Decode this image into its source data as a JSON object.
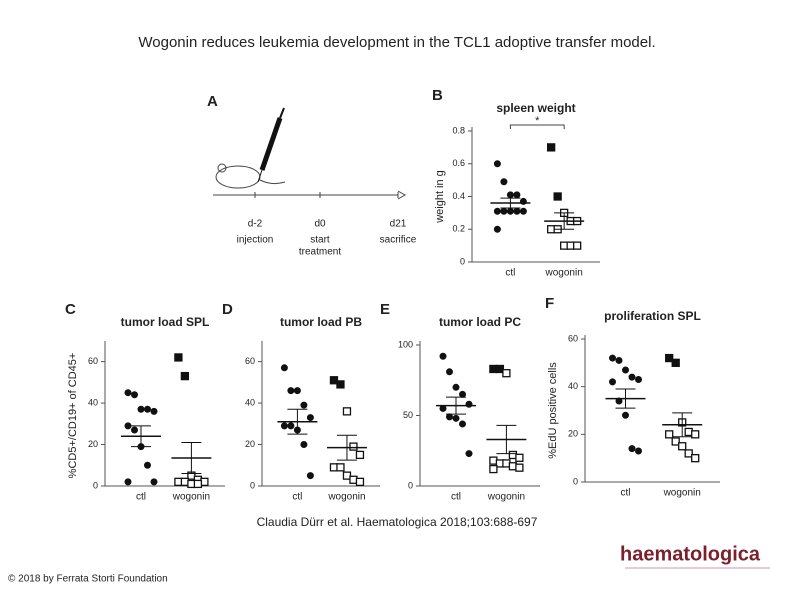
{
  "header": {
    "title": "Wogonin reduces leukemia development in the TCL1 adoptive transfer model."
  },
  "diagram": {
    "label": "A",
    "steps": [
      {
        "day": "d-2",
        "text": [
          "injection"
        ]
      },
      {
        "day": "d0",
        "text": [
          "start",
          "treatment"
        ]
      },
      {
        "day": "d21",
        "text": [
          "sacrifice"
        ]
      }
    ]
  },
  "chart_data": [
    {
      "type": "dotplot",
      "label": "B",
      "title": "spleen weight",
      "y_label": "weight in g",
      "significance": "*",
      "categories": [
        "ctl",
        "wogonin"
      ],
      "ylim": [
        0,
        0.8
      ],
      "yticks": [
        0,
        0.2,
        0.4,
        0.6,
        0.8
      ],
      "groups": [
        {
          "marker": "circle",
          "values": [
            0.6,
            0.49,
            0.41,
            0.41,
            0.37,
            0.31,
            0.31,
            0.31,
            0.31,
            0.31,
            0.2
          ],
          "values_open": [],
          "mean": 0.36,
          "error": 0.03
        },
        {
          "marker": "square",
          "values": [
            0.7,
            0.4
          ],
          "values_open": [
            0.3,
            0.25,
            0.25,
            0.2,
            0.2,
            0.1,
            0.1,
            0.1
          ],
          "mean": 0.25,
          "error": 0.05
        }
      ]
    },
    {
      "type": "dotplot",
      "label": "C",
      "title": "tumor load SPL",
      "y_label": "%CD5+/CD19+ of CD45+",
      "categories": [
        "ctl",
        "wogonin"
      ],
      "ylim": [
        0,
        68
      ],
      "yticks": [
        0,
        20,
        40,
        60
      ],
      "groups": [
        {
          "marker": "circle",
          "values": [
            45,
            44,
            37,
            37,
            36,
            29,
            27,
            19,
            10,
            2,
            2
          ],
          "values_open": [],
          "mean": 24,
          "error": 5
        },
        {
          "marker": "square",
          "values": [
            62,
            53
          ],
          "values_open": [
            5,
            3,
            2,
            2,
            2,
            1,
            1
          ],
          "mean": 13.5,
          "error": 7.5
        }
      ]
    },
    {
      "type": "dotplot",
      "label": "D",
      "title": "tumor load PB",
      "categories": [
        "ctl",
        "wogonin"
      ],
      "ylim": [
        0,
        68
      ],
      "yticks": [
        0,
        20,
        40,
        60
      ],
      "groups": [
        {
          "marker": "circle",
          "values": [
            57,
            46,
            46,
            39,
            33,
            29,
            29,
            27,
            20,
            5
          ],
          "values_open": [],
          "mean": 31,
          "error": 6
        },
        {
          "marker": "square",
          "values": [
            51,
            49
          ],
          "values_open": [
            36,
            19,
            15,
            9,
            9,
            5,
            3,
            2
          ],
          "mean": 18.5,
          "error": 6
        }
      ]
    },
    {
      "type": "dotplot",
      "label": "E",
      "title": "tumor load PC",
      "categories": [
        "ctl",
        "wogonin"
      ],
      "ylim": [
        0,
        100
      ],
      "yticks": [
        0,
        50,
        100
      ],
      "groups": [
        {
          "marker": "circle",
          "values": [
            92,
            81,
            70,
            65,
            58,
            55,
            49,
            48,
            44,
            23
          ],
          "values_open": [],
          "mean": 57,
          "error": 6
        },
        {
          "marker": "square",
          "values": [
            83,
            83
          ],
          "values_open": [
            80,
            22,
            20,
            18,
            16,
            16,
            14,
            13,
            12
          ],
          "mean": 33,
          "error": 10
        }
      ]
    },
    {
      "type": "dotplot",
      "label": "F",
      "title": "proliferation SPL",
      "y_label": "%EdU positive cells",
      "categories": [
        "ctl",
        "wogonin"
      ],
      "ylim": [
        0,
        60
      ],
      "yticks": [
        0,
        20,
        40,
        60
      ],
      "groups": [
        {
          "marker": "circle",
          "values": [
            52,
            51,
            47,
            44,
            43,
            42,
            34,
            28,
            14,
            13
          ],
          "values_open": [],
          "mean": 35,
          "error": 4
        },
        {
          "marker": "square",
          "values": [
            52,
            50
          ],
          "values_open": [
            25,
            21,
            20,
            20,
            17,
            15,
            12,
            10
          ],
          "mean": 24,
          "error": 5
        }
      ]
    }
  ],
  "footer": {
    "citation": "Claudia Dürr et al. Haematologica 2018;103:688-697",
    "copyright": "© 2018 by Ferrata Storti Foundation",
    "logo": "haematologica"
  }
}
